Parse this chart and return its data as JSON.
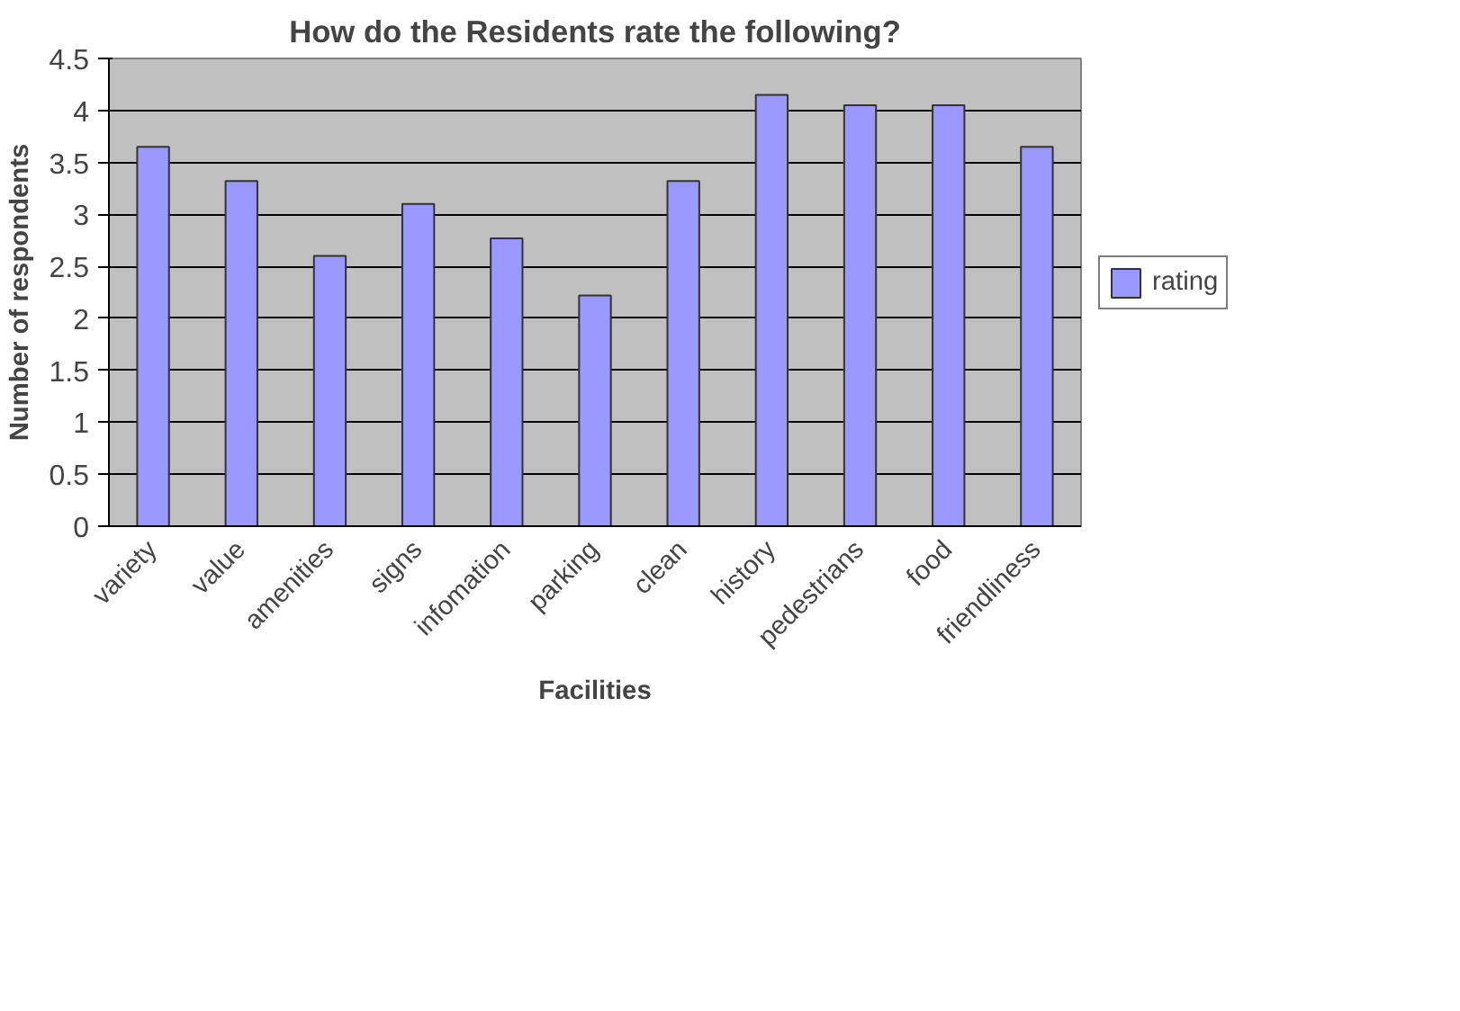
{
  "chart_data": {
    "type": "bar",
    "title": "How do the Residents rate the following?",
    "xlabel": "Facilities",
    "ylabel": "Number of respondents",
    "categories": [
      "variety",
      "value",
      "amenities",
      "signs",
      "infomation",
      "parking",
      "clean",
      "history",
      "pedestrians",
      "food",
      "friendliness"
    ],
    "series": [
      {
        "name": "rating",
        "color": "#9999ff",
        "values": [
          3.65,
          3.32,
          2.6,
          3.1,
          2.77,
          2.22,
          3.32,
          4.15,
          4.05,
          4.05,
          3.65
        ]
      }
    ],
    "ylim": [
      0,
      4.5
    ],
    "yticks": [
      0,
      0.5,
      1,
      1.5,
      2,
      2.5,
      3,
      3.5,
      4,
      4.5
    ],
    "grid": "y",
    "legend": "right"
  }
}
